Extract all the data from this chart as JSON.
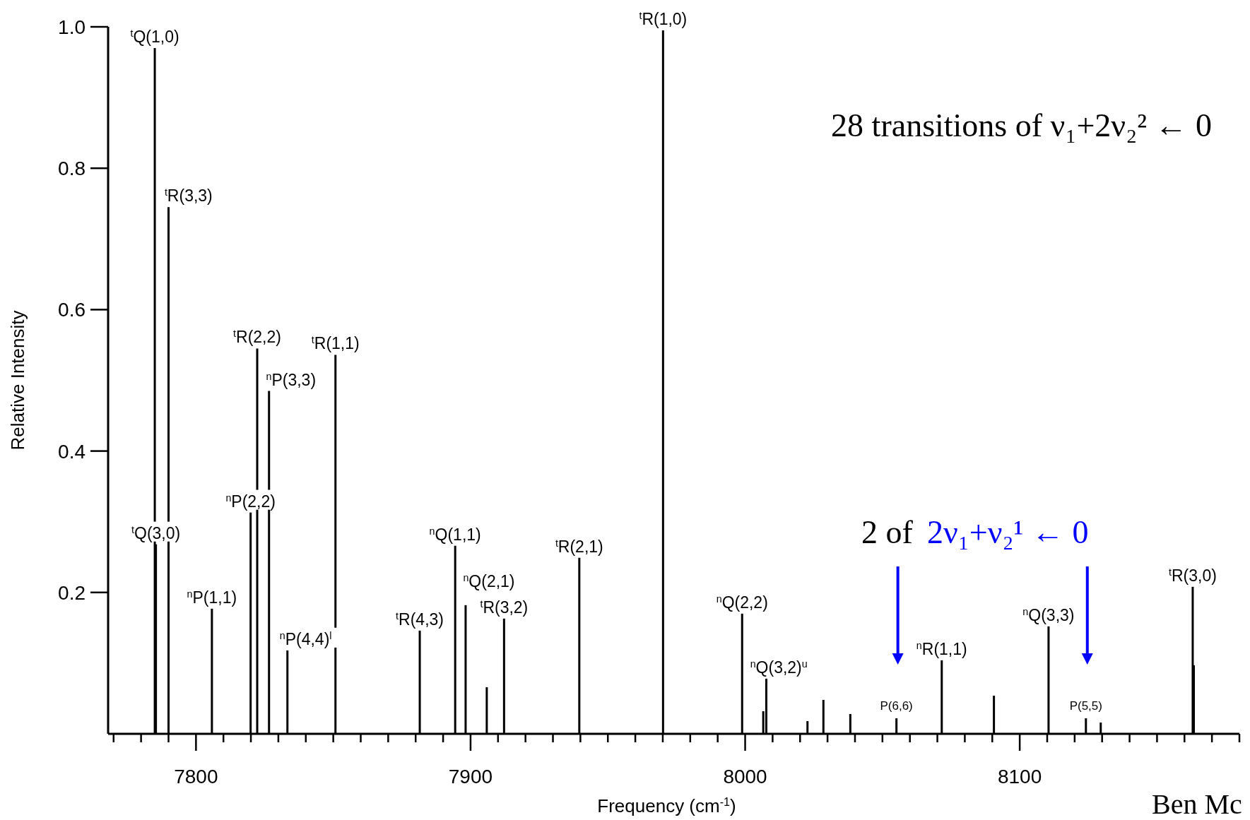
{
  "chart_data": {
    "type": "bar",
    "xlabel": "Frequency (cm$^{-1}$)",
    "ylabel": "Relative Intensity",
    "xlim": [
      7768,
      8180
    ],
    "ylim": [
      0,
      1
    ],
    "xticks": [
      {
        "value": 7770,
        "label": null
      },
      {
        "value": 7780,
        "label": null
      },
      {
        "value": 7790,
        "label": null
      },
      7800,
      {
        "value": 7810,
        "label": null
      },
      {
        "value": 7820,
        "label": null
      },
      {
        "value": 7830,
        "label": null
      },
      {
        "value": 7840,
        "label": null
      },
      {
        "value": 7850,
        "label": null
      },
      {
        "value": 7860,
        "label": null
      },
      {
        "value": 7870,
        "label": null
      },
      {
        "value": 7880,
        "label": null
      },
      {
        "value": 7890,
        "label": null
      },
      7900,
      {
        "value": 7910,
        "label": null
      },
      {
        "value": 7920,
        "label": null
      },
      {
        "value": 7930,
        "label": null
      },
      {
        "value": 7940,
        "label": null
      },
      {
        "value": 7950,
        "label": null
      },
      {
        "value": 7960,
        "label": null
      },
      {
        "value": 7970,
        "label": null
      },
      {
        "value": 7980,
        "label": null
      },
      {
        "value": 7990,
        "label": null
      },
      8000,
      {
        "value": 8010,
        "label": null
      },
      {
        "value": 8020,
        "label": null
      },
      {
        "value": 8030,
        "label": null
      },
      {
        "value": 8040,
        "label": null
      },
      {
        "value": 8050,
        "label": null
      },
      {
        "value": 8060,
        "label": null
      },
      {
        "value": 8070,
        "label": null
      },
      {
        "value": 8080,
        "label": null
      },
      {
        "value": 8090,
        "label": null
      },
      8100,
      {
        "value": 8110,
        "label": null
      },
      {
        "value": 8120,
        "label": null
      },
      {
        "value": 8130,
        "label": null
      },
      {
        "value": 8140,
        "label": null
      },
      {
        "value": 8150,
        "label": null
      },
      {
        "value": 8160,
        "label": null
      },
      {
        "value": 8170,
        "label": null
      },
      {
        "value": 8180,
        "label": null
      }
    ],
    "yticks": [
      0.2,
      0.4,
      0.6,
      0.8,
      {
        "value": 1,
        "label": "1.0"
      }
    ],
    "series": [
      {
        "color": "#000000",
        "x": [
          7785.0,
          7785.4,
          7790,
          7805.8,
          7819.9,
          7822.3,
          7826.6,
          7833.3,
          7850.8,
          7881.5,
          7894.4,
          7898.2,
          7905.9,
          7912.2,
          7939.6,
          7970.1,
          7998.9,
          8006.6,
          8007.7,
          8022.7,
          8028.5,
          8038.3,
          8071.6,
          8090.6,
          8110.5,
          8129.5,
          8163.0,
          8163.4
        ],
        "values": [
          0.97,
          0.268,
          0.745,
          0.177,
          0.313,
          0.545,
          0.485,
          0.118,
          0.536,
          0.146,
          0.266,
          0.182,
          0.066,
          0.163,
          0.249,
          0.995,
          0.17,
          0.032,
          0.078,
          0.018,
          0.048,
          0.028,
          0.104,
          0.054,
          0.152,
          0.016,
          0.208,
          0.097
        ]
      },
      {
        "color": "#000000",
        "x": [
          8055.1,
          8124.1
        ],
        "values": [
          0.022,
          0.022
        ]
      }
    ],
    "annotations": [
      "28 transitions of  ν₁+2ν₂² ← 0",
      "2 of",
      "2ν₁+ν₂¹ ← 0",
      "Ben Mc",
      {
        "text": "$^{t}$Q(1,0)",
        "x": 7785.0,
        "y": 0.97
      },
      {
        "text": "$^{t}$Q(3,0)",
        "x": 7785.4,
        "y": 0.268
      },
      {
        "text": "$^{t}$R(3,3)",
        "x": 7790,
        "y": 0.745
      },
      {
        "text": "$^{n}$P(1,1)",
        "x": 7805.8,
        "y": 0.177
      },
      {
        "text": "$^{n}$P(2,2)",
        "x": 7819.9,
        "y": 0.313
      },
      {
        "text": "$^{t}$R(2,2)",
        "x": 7822.3,
        "y": 0.545
      },
      {
        "text": "$^{n}$P(3,3)",
        "x": 7826.6,
        "y": 0.485
      },
      {
        "text": "$^{n}$P(4,4)$^{l}$",
        "x": 7833.3,
        "y": 0.118
      },
      {
        "text": "$^{t}$R(1,1)",
        "x": 7850.8,
        "y": 0.536
      },
      {
        "text": "$^{t}$R(4,3)",
        "x": 7881.5,
        "y": 0.146
      },
      {
        "text": "$^{n}$Q(1,1)",
        "x": 7894.4,
        "y": 0.266
      },
      {
        "text": "$^{n}$Q(2,1)",
        "x": 7896,
        "y": 0.2
      },
      {
        "text": "$^{t}$R(3,2)",
        "x": 7912.2,
        "y": 0.163
      },
      {
        "text": "$^{t}$R(2,1)",
        "x": 7939.6,
        "y": 0.249
      },
      {
        "text": "$^{t}$R(1,0)",
        "x": 7970.1,
        "y": 0.995
      },
      {
        "text": "$^{n}$Q(2,2)",
        "x": 7998.9,
        "y": 0.17
      },
      {
        "text": "$^{n}$Q(3,2)$^{u}$",
        "x": 8007.7,
        "y": 0.078
      },
      {
        "text": "P(6,6)",
        "x": 8055.1,
        "y": 0.022
      },
      {
        "text": "$^{n}$R(1,1)",
        "x": 8071.6,
        "y": 0.104
      },
      {
        "text": "$^{n}$Q(3,3)",
        "x": 8110.5,
        "y": 0.152
      },
      {
        "text": "P(5,5)",
        "x": 8124.1,
        "y": 0.022
      },
      {
        "text": "$^{t}$R(3,0)",
        "x": 8163.0,
        "y": 0.208
      }
    ]
  }
}
